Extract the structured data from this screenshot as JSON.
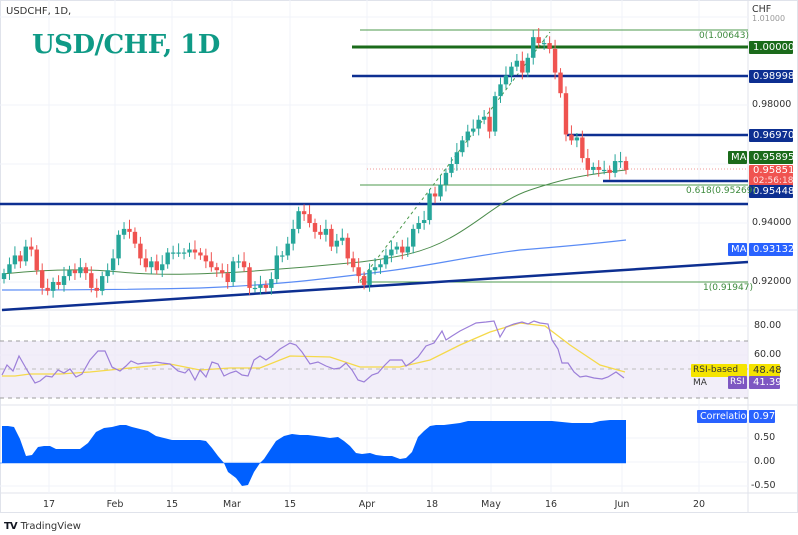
{
  "header": {
    "symbol_label": "USDCHF, 1D,",
    "title": "USD/CHF, 1D",
    "currency": "CHF"
  },
  "price_axis": {
    "ticks": [
      "1.01000",
      "0.98000",
      "0.94000",
      "0.92000"
    ],
    "tags": {
      "level_1": "1.00000",
      "level_2": "0.98998",
      "level_3": "0.96970",
      "ma_label": "MA",
      "ma_value": "0.95895",
      "last_price": "0.95851",
      "countdown": "02:56:18",
      "level_4": "0.95448",
      "ma2_label": "MA",
      "ma2_value": "0.93132"
    }
  },
  "fib_labels": {
    "top": "0(1.00643)",
    "mid": "0.618(0.95269)",
    "bottom": "1(0.91947)"
  },
  "rsi_panel": {
    "ticks": [
      "80.00",
      "60.00"
    ],
    "ma_label": "RSI-based MA",
    "ma_value": "48.48",
    "rsi_label": "RSI",
    "rsi_value": "41.39"
  },
  "correlation_panel": {
    "label": "Correlation",
    "value": "0.97",
    "ticks": [
      "0.50",
      "0.00",
      "-0.50"
    ]
  },
  "time_axis": {
    "labels": [
      "17",
      "Feb",
      "15",
      "Mar",
      "15",
      "Apr",
      "18",
      "May",
      "16",
      "Jun",
      "20"
    ]
  },
  "footer": {
    "brand": "TradingView"
  },
  "colors": {
    "up": "#26a69a",
    "down": "#ef5350",
    "title": "#0f9a86",
    "green_level": "#1b6b1b",
    "blue_level": "#0d2f91",
    "ma_blue": "#2962ff",
    "rsi": "#9c7fd9",
    "rsi_ma": "#f5d94a",
    "correlation": "#0060ff"
  },
  "chart_data": [
    {
      "type": "candlestick",
      "title": "USD/CHF, 1D",
      "xlabel": "",
      "ylabel": "CHF",
      "x_ticks": [
        "17",
        "Feb",
        "15",
        "Mar",
        "15",
        "Apr",
        "18",
        "May",
        "16",
        "Jun",
        "20"
      ],
      "ylim": [
        0.912,
        1.012
      ],
      "y_ticks": [
        1.01,
        0.98,
        0.94,
        0.92
      ],
      "horizontal_levels": [
        1.0,
        0.98998,
        0.9697,
        0.95448,
        0.9492
      ],
      "fibonacci": {
        "0": 1.00643,
        "0.618": 0.95269,
        "1": 0.91947
      },
      "moving_averages": [
        {
          "name": "MA",
          "last": 0.95895
        },
        {
          "name": "MA",
          "last": 0.93132
        }
      ],
      "last_price": 0.95851,
      "approx_close_path": [
        {
          "x": "17 Jan",
          "close": 0.921
        },
        {
          "x": "Feb",
          "close": 0.925
        },
        {
          "x": "15 Feb",
          "close": 0.924
        },
        {
          "x": "Mar",
          "close": 0.921
        },
        {
          "x": "15 Mar",
          "close": 0.937
        },
        {
          "x": "Apr",
          "close": 0.925
        },
        {
          "x": "18 Apr",
          "close": 0.95
        },
        {
          "x": "May",
          "close": 0.979
        },
        {
          "x": "12 May",
          "close": 1.002
        },
        {
          "x": "16 May",
          "close": 0.997
        },
        {
          "x": "20 May",
          "close": 0.97
        },
        {
          "x": "27 May",
          "close": 0.959
        },
        {
          "x": "Jun",
          "close": 0.9585
        }
      ]
    },
    {
      "type": "line",
      "title": "RSI",
      "series": [
        {
          "name": "RSI",
          "last": 41.39
        },
        {
          "name": "RSI-based MA",
          "last": 48.48
        }
      ],
      "y_ticks": [
        80,
        60
      ],
      "bands": [
        70,
        50,
        30
      ]
    },
    {
      "type": "area",
      "title": "Correlation",
      "series": [
        {
          "name": "Correlation",
          "last": 0.97
        }
      ],
      "y_ticks": [
        0.5,
        0.0,
        -0.5
      ],
      "ylim": [
        -0.6,
        1.05
      ]
    }
  ]
}
